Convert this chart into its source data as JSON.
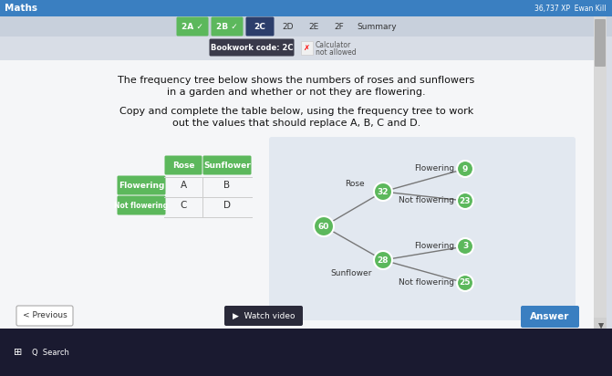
{
  "bg_color": "#d8dde6",
  "header_bg": "#3a7fc1",
  "header_text": "Maths",
  "xp_text": "36,737 XP  Ewan Kill",
  "tabs": [
    "2A",
    "2B",
    "2C",
    "2D",
    "2E",
    "2F",
    "Summary"
  ],
  "tabs_checked": [
    "2A",
    "2B"
  ],
  "tabs_active": "2C",
  "tabs_active_color": "#2c3e6b",
  "bookwork_text": "Bookwork code: 2C",
  "green": "#5cb85c",
  "title_line1": "The frequency tree below shows the numbers of roses and sunflowers",
  "title_line2": "in a garden and whether or not they are flowering.",
  "instruction_line1": "Copy and complete the table below, using the frequency tree to work",
  "instruction_line2": "out the values that should replace A, B, C and D.",
  "tree_bg": "#e2e8f0",
  "root_val": 60,
  "rose_val": 32,
  "sunflower_val": 28,
  "rose_flowering": 9,
  "rose_not_flowering": 23,
  "sunflower_flowering": 3,
  "sunflower_not_flowering": 25,
  "prev_btn": "< Previous",
  "watch_btn": "Watch video",
  "answer_btn": "Answer",
  "answer_btn_color": "#3a7fc1",
  "taskbar_color": "#1a1a2e",
  "white": "#ffffff"
}
